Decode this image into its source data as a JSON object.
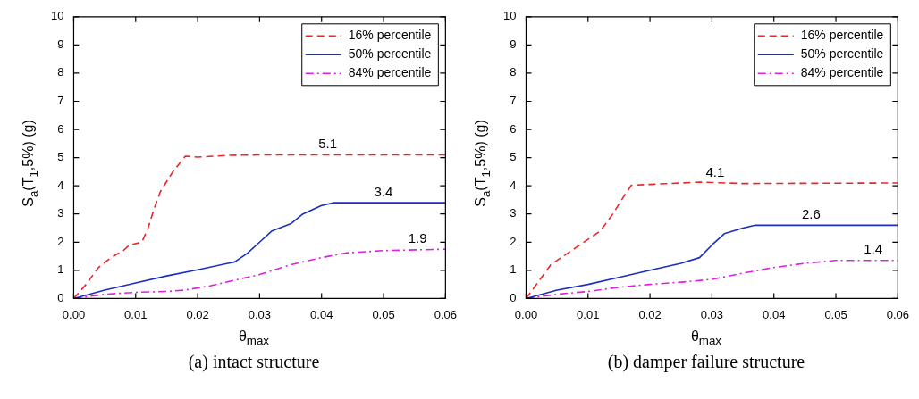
{
  "chart_data": [
    {
      "type": "line",
      "title": "(a) intact structure",
      "xlabel": "θ$_{max}$",
      "ylabel": "S$_{a}$(T$_{1}$,5%) (g)",
      "xlim": [
        0,
        0.06
      ],
      "ylim": [
        0,
        10
      ],
      "xticks": [
        {
          "value": 0,
          "label": "0.00"
        },
        {
          "value": 0.01,
          "label": "0.01"
        },
        {
          "value": 0.02,
          "label": "0.02"
        },
        {
          "value": 0.03,
          "label": "0.03"
        },
        {
          "value": 0.04,
          "label": "0.04"
        },
        {
          "value": 0.05,
          "label": "0.05"
        },
        {
          "value": 0.06,
          "label": "0.06"
        }
      ],
      "yticks": [
        0,
        1,
        2,
        3,
        4,
        5,
        6,
        7,
        8,
        9,
        10
      ],
      "grid": false,
      "legend": "top right",
      "marker": "none",
      "series": [
        {
          "name": "16% percentile",
          "color": "#e8262b",
          "line_style": "dashed",
          "x": [
            0,
            0.002,
            0.004,
            0.006,
            0.008,
            0.009,
            0.011,
            0.012,
            0.013,
            0.014,
            0.016,
            0.018,
            0.02,
            0.025,
            0.03,
            0.06
          ],
          "values": [
            0,
            0.5,
            1.1,
            1.45,
            1.7,
            1.9,
            2.0,
            2.5,
            3.2,
            3.8,
            4.5,
            5.05,
            5.02,
            5.08,
            5.1,
            5.1
          ]
        },
        {
          "name": "50% percentile",
          "color": "#1a2fbf",
          "line_style": "solid",
          "x": [
            0,
            0.005,
            0.01,
            0.015,
            0.02,
            0.026,
            0.028,
            0.03,
            0.032,
            0.035,
            0.037,
            0.04,
            0.042,
            0.06
          ],
          "values": [
            0,
            0.3,
            0.55,
            0.8,
            1.02,
            1.3,
            1.6,
            2.0,
            2.4,
            2.65,
            3.0,
            3.3,
            3.4,
            3.4
          ]
        },
        {
          "name": "84% percentile",
          "color": "#e020e0",
          "line_style": "dashdot",
          "x": [
            0,
            0.005,
            0.01,
            0.015,
            0.018,
            0.022,
            0.026,
            0.03,
            0.035,
            0.04,
            0.044,
            0.05,
            0.06
          ],
          "values": [
            0,
            0.15,
            0.22,
            0.25,
            0.3,
            0.45,
            0.65,
            0.85,
            1.2,
            1.45,
            1.62,
            1.7,
            1.75
          ]
        }
      ],
      "annotations": [
        {
          "text": "5.1",
          "x": 0.041,
          "y": 5.1
        },
        {
          "text": "3.4",
          "x": 0.05,
          "y": 3.4
        },
        {
          "text": "1.9",
          "x": 0.0555,
          "y": 1.73
        }
      ]
    },
    {
      "type": "line",
      "title": "(b) damper failure structure",
      "xlabel": "θ$_{max}$",
      "ylabel": "S$_{a}$(T$_{1}$,5%) (g)",
      "xlim": [
        0,
        0.06
      ],
      "ylim": [
        0,
        10
      ],
      "xticks": [
        {
          "value": 0,
          "label": "0.00"
        },
        {
          "value": 0.01,
          "label": "0.01"
        },
        {
          "value": 0.02,
          "label": "0.02"
        },
        {
          "value": 0.03,
          "label": "0.03"
        },
        {
          "value": 0.04,
          "label": "0.04"
        },
        {
          "value": 0.05,
          "label": "0.05"
        },
        {
          "value": 0.06,
          "label": "0.06"
        }
      ],
      "yticks": [
        0,
        1,
        2,
        3,
        4,
        5,
        6,
        7,
        8,
        9,
        10
      ],
      "grid": false,
      "legend": "top right",
      "marker": "none",
      "series": [
        {
          "name": "16% percentile",
          "color": "#e8262b",
          "line_style": "dashed",
          "x": [
            0,
            0.002,
            0.004,
            0.006,
            0.008,
            0.01,
            0.012,
            0.014,
            0.016,
            0.017,
            0.02,
            0.025,
            0.028,
            0.035,
            0.06
          ],
          "values": [
            0,
            0.6,
            1.2,
            1.5,
            1.8,
            2.1,
            2.4,
            3.0,
            3.7,
            4.02,
            4.05,
            4.1,
            4.13,
            4.08,
            4.1
          ]
        },
        {
          "name": "50% percentile",
          "color": "#1a2fbf",
          "line_style": "solid",
          "x": [
            0,
            0.005,
            0.01,
            0.015,
            0.02,
            0.025,
            0.028,
            0.03,
            0.032,
            0.035,
            0.037,
            0.06
          ],
          "values": [
            0,
            0.3,
            0.5,
            0.75,
            1.0,
            1.25,
            1.45,
            1.9,
            2.3,
            2.5,
            2.6,
            2.6
          ]
        },
        {
          "name": "84% percentile",
          "color": "#e020e0",
          "line_style": "dashdot",
          "x": [
            0,
            0.005,
            0.01,
            0.015,
            0.02,
            0.025,
            0.03,
            0.035,
            0.04,
            0.045,
            0.05,
            0.06
          ],
          "values": [
            0,
            0.15,
            0.25,
            0.4,
            0.5,
            0.58,
            0.68,
            0.9,
            1.1,
            1.25,
            1.35,
            1.35
          ]
        }
      ],
      "annotations": [
        {
          "text": "4.1",
          "x": 0.0305,
          "y": 4.1
        },
        {
          "text": "2.6",
          "x": 0.046,
          "y": 2.6
        },
        {
          "text": "1.4",
          "x": 0.056,
          "y": 1.35
        }
      ]
    }
  ]
}
